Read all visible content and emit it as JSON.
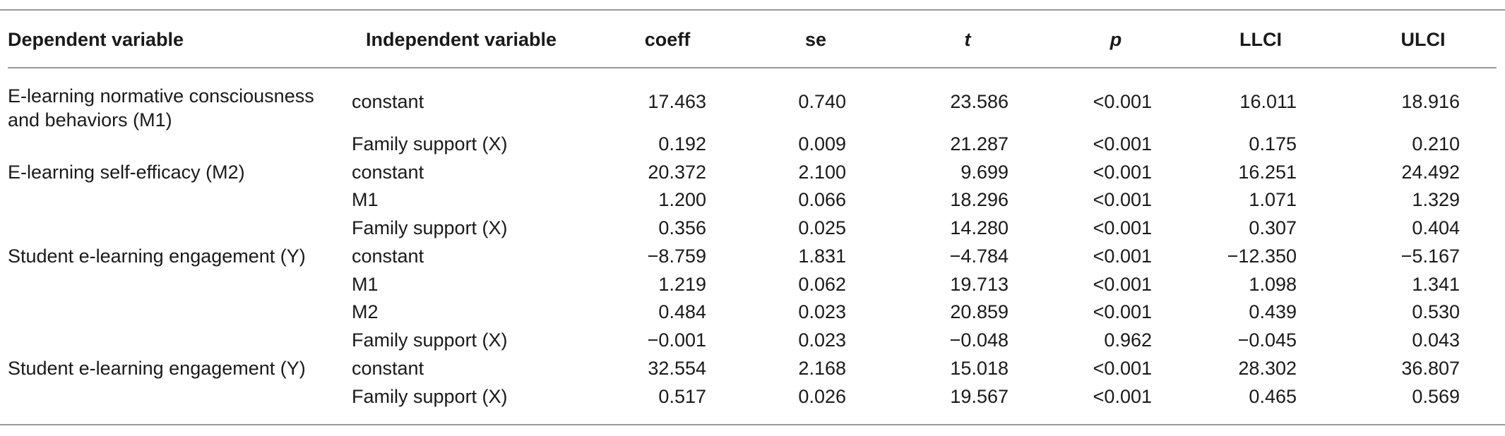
{
  "table": {
    "headers": {
      "dependent": "Dependent variable",
      "independent": "Independent variable",
      "coeff": "coeff",
      "se": "se",
      "t": "t",
      "p": "p",
      "llci": "LLCI",
      "ulci": "ULCI"
    },
    "rows": [
      {
        "dep": "E-learning normative consciousness",
        "dep2": "and behaviors (M1)",
        "ind": "constant",
        "coeff": "17.463",
        "se": "0.740",
        "t": "23.586",
        "p": "<0.001",
        "llci": "16.011",
        "ulci": "18.916"
      },
      {
        "dep": "",
        "dep2": "",
        "ind": "Family support (X)",
        "coeff": "0.192",
        "se": "0.009",
        "t": "21.287",
        "p": "<0.001",
        "llci": "0.175",
        "ulci": "0.210"
      },
      {
        "dep": "E-learning self-efficacy (M2)",
        "dep2": "",
        "ind": "constant",
        "coeff": "20.372",
        "se": "2.100",
        "t": "9.699",
        "p": "<0.001",
        "llci": "16.251",
        "ulci": "24.492"
      },
      {
        "dep": "",
        "dep2": "",
        "ind": "M1",
        "coeff": "1.200",
        "se": "0.066",
        "t": "18.296",
        "p": "<0.001",
        "llci": "1.071",
        "ulci": "1.329"
      },
      {
        "dep": "",
        "dep2": "",
        "ind": "Family support (X)",
        "coeff": "0.356",
        "se": "0.025",
        "t": "14.280",
        "p": "<0.001",
        "llci": "0.307",
        "ulci": "0.404"
      },
      {
        "dep": "Student e-learning engagement (Y)",
        "dep2": "",
        "ind": "constant",
        "coeff": "−8.759",
        "se": "1.831",
        "t": "−4.784",
        "p": "<0.001",
        "llci": "−12.350",
        "ulci": "−5.167"
      },
      {
        "dep": "",
        "dep2": "",
        "ind": "M1",
        "coeff": "1.219",
        "se": "0.062",
        "t": "19.713",
        "p": "<0.001",
        "llci": "1.098",
        "ulci": "1.341"
      },
      {
        "dep": "",
        "dep2": "",
        "ind": "M2",
        "coeff": "0.484",
        "se": "0.023",
        "t": "20.859",
        "p": "<0.001",
        "llci": "0.439",
        "ulci": "0.530"
      },
      {
        "dep": "",
        "dep2": "",
        "ind": "Family support (X)",
        "coeff": "−0.001",
        "se": "0.023",
        "t": "−0.048",
        "p": "0.962",
        "llci": "−0.045",
        "ulci": "0.043"
      },
      {
        "dep": "Student e-learning engagement (Y)",
        "dep2": "",
        "ind": "constant",
        "coeff": "32.554",
        "se": "2.168",
        "t": "15.018",
        "p": "<0.001",
        "llci": "28.302",
        "ulci": "36.807"
      },
      {
        "dep": "",
        "dep2": "",
        "ind": "Family support (X)",
        "coeff": "0.517",
        "se": "0.026",
        "t": "19.567",
        "p": "<0.001",
        "llci": "0.465",
        "ulci": "0.569"
      }
    ]
  }
}
